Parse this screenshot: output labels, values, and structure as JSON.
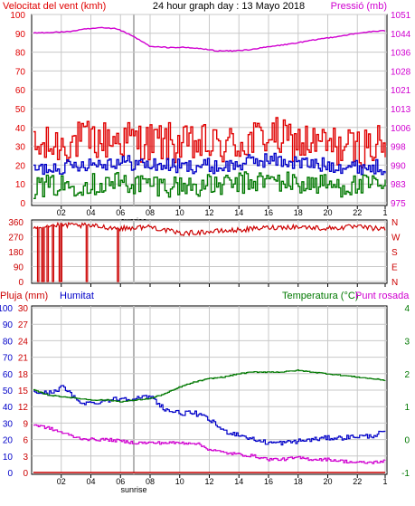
{
  "header": {
    "wind_speed_title": "Velocitat del vent (kmh)",
    "graph_title": "24 hour graph day : 13 Mayo 2018",
    "pressure_title": "Pressió (mb)"
  },
  "labels": {
    "rain": "Pluja (mm)",
    "humidity": "Humitat",
    "temperature": "Temperatura (°C)",
    "dewpoint": "Punt rosada",
    "sunrise": "sunrise"
  },
  "colors": {
    "wind_gust": "#e00000",
    "wind_avg": "#0000c8",
    "wind_low": "#007800",
    "pressure": "#d000d0",
    "direction": "#cc0000",
    "rain": "#cc0000",
    "humidity": "#0000c8",
    "temperature": "#007800",
    "dewpoint": "#d000d0",
    "grid": "#c8c8c8",
    "sunrise_marker": "#c8c8c8"
  },
  "x_axis": {
    "ticks": [
      "02",
      "04",
      "06",
      "08",
      "10",
      "12",
      "14",
      "16",
      "18",
      "20",
      "22",
      "1"
    ]
  },
  "chart_data": [
    {
      "type": "line",
      "title": "24 hour graph day : 13 Mayo 2018",
      "ylabel": "Velocitat del vent (kmh)",
      "ylabel_right": "Pressió (mb)",
      "ylim": [
        0,
        100
      ],
      "y_ticks": [
        "0",
        "10",
        "20",
        "30",
        "40",
        "50",
        "60",
        "70",
        "80",
        "90",
        "100"
      ],
      "ylim_right": [
        975,
        1051
      ],
      "y_ticks_right": [
        "975",
        "983",
        "990",
        "998",
        "1006",
        "1013",
        "1021",
        "1028",
        "1036",
        "1044",
        "1051"
      ],
      "x": [
        "00",
        "02",
        "04",
        "06",
        "07",
        "08",
        "09",
        "10",
        "11",
        "12",
        "13",
        "14",
        "15",
        "16",
        "17",
        "18",
        "19",
        "20",
        "21",
        "22",
        "23",
        "24"
      ],
      "series": [
        {
          "name": "gust",
          "axis": "left",
          "values": [
            28,
            30,
            32,
            33,
            33,
            34,
            33,
            32,
            32,
            30,
            31,
            30,
            31,
            33,
            36,
            33,
            32,
            31,
            30,
            29,
            30,
            30
          ]
        },
        {
          "name": "avg",
          "axis": "left",
          "values": [
            17,
            19,
            19,
            21,
            21,
            22,
            21,
            20,
            20,
            19,
            20,
            19,
            20,
            22,
            23,
            22,
            21,
            20,
            20,
            19,
            19,
            19
          ]
        },
        {
          "name": "low",
          "axis": "left",
          "values": [
            8,
            9,
            9,
            10,
            10,
            11,
            10,
            10,
            9,
            9,
            9,
            9,
            10,
            11,
            12,
            11,
            10,
            10,
            9,
            9,
            9,
            9
          ]
        },
        {
          "name": "Pressió",
          "axis": "right",
          "values": [
            1043.5,
            1043.8,
            1044,
            1045,
            1045.6,
            1045.2,
            1042,
            1038,
            1037.7,
            1037.7,
            1037.2,
            1036.3,
            1036.3,
            1036.9,
            1037.9,
            1038.8,
            1039.8,
            1041,
            1042,
            1043,
            1044,
            1044.4
          ]
        }
      ]
    },
    {
      "type": "line",
      "ylabel": "Wind direction",
      "ylim": [
        0,
        360
      ],
      "y_ticks": [
        "0",
        "90",
        "180",
        "270",
        "360"
      ],
      "y_ticks_right": [
        "N",
        "E",
        "S",
        "W",
        "N"
      ],
      "x": [
        "00",
        "02",
        "04",
        "06",
        "08",
        "10",
        "12",
        "14",
        "16",
        "18",
        "20",
        "22",
        "24"
      ],
      "values": [
        330,
        340,
        335,
        320,
        330,
        290,
        300,
        310,
        325,
        330,
        320,
        330,
        315
      ],
      "drops_to_zero_near_hours": [
        0.3,
        0.6,
        0.9,
        1.3,
        1.8,
        3.6,
        5.7
      ]
    },
    {
      "type": "line",
      "ylabel": "Pluja (mm)",
      "ylim_left_outer": [
        0,
        100
      ],
      "y_ticks_left_outer": [
        "0",
        "10",
        "20",
        "30",
        "40",
        "50",
        "60",
        "70",
        "80",
        "90",
        "100"
      ],
      "ylim_left_inner": [
        0,
        30
      ],
      "y_ticks_left_inner": [
        "0",
        "3",
        "6",
        "9",
        "12",
        "15",
        "18",
        "21",
        "24",
        "27",
        "30"
      ],
      "ylim_right": [
        -1,
        4
      ],
      "y_ticks_right": [
        "-1",
        "0",
        "1",
        "2",
        "3",
        "4"
      ],
      "x": [
        "00",
        "01",
        "02",
        "03",
        "04",
        "05",
        "06",
        "07",
        "08",
        "09",
        "10",
        "11",
        "12",
        "13",
        "14",
        "15",
        "16",
        "17",
        "18",
        "19",
        "20",
        "21",
        "22",
        "23",
        "24"
      ],
      "series": [
        {
          "name": "Humitat",
          "values": [
            49,
            48,
            52,
            43,
            42,
            44,
            45,
            45,
            46,
            38,
            36,
            36,
            32,
            25,
            23,
            20,
            18,
            18,
            19,
            20,
            21,
            21,
            22,
            22,
            25
          ]
        },
        {
          "name": "Temperatura (°C)",
          "values": [
            50,
            47,
            46,
            45,
            44,
            44,
            43,
            44,
            45,
            48,
            52,
            55,
            57,
            58,
            60,
            61,
            61,
            61,
            62,
            61,
            60,
            59,
            58,
            57,
            56
          ]
        },
        {
          "name": "Punt rosada",
          "values": [
            29,
            27,
            24,
            21,
            20,
            20,
            19,
            18,
            18,
            18,
            18,
            18,
            14,
            12,
            11,
            10,
            8,
            8,
            9,
            8,
            8,
            7,
            6,
            6,
            7
          ]
        },
        {
          "name": "Pluja (mm)",
          "values": [
            0,
            0,
            0,
            0,
            0,
            0,
            0,
            0,
            0,
            0,
            0,
            0,
            0,
            0,
            0,
            0,
            0,
            0,
            0,
            0,
            0,
            0,
            0,
            0,
            0
          ]
        }
      ]
    }
  ]
}
